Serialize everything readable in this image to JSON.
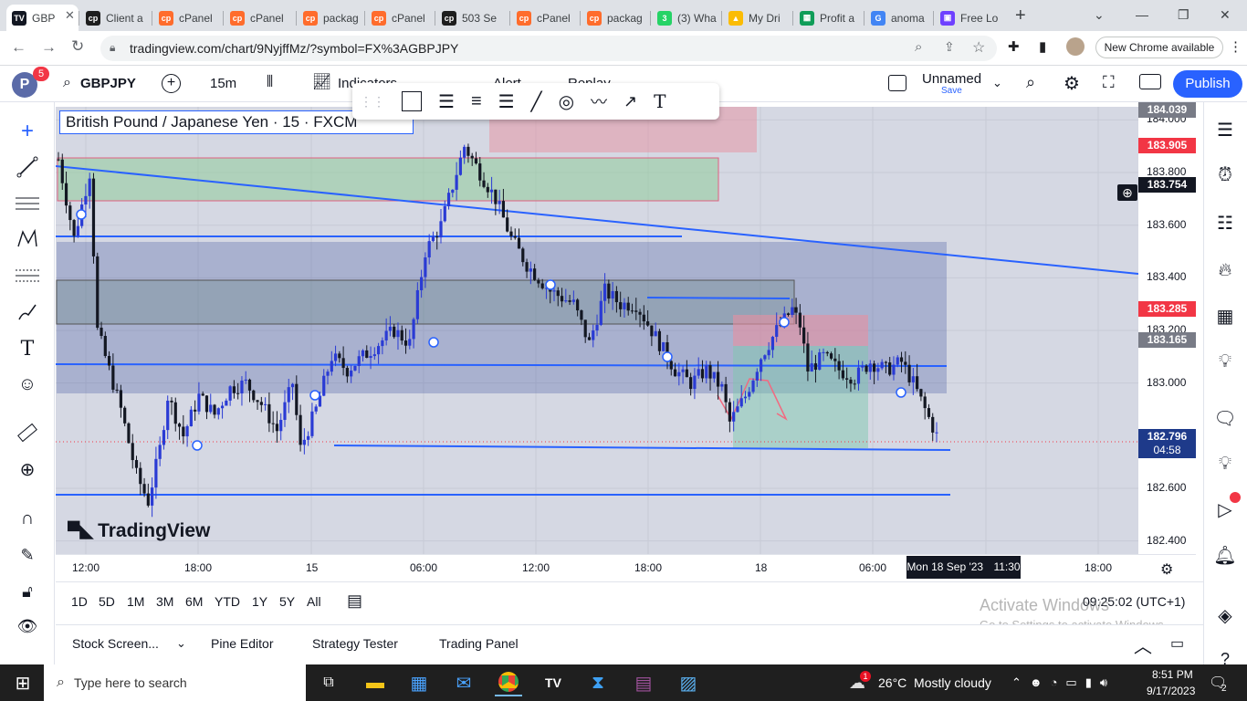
{
  "browser": {
    "tabs": [
      {
        "title": "GBP",
        "active": true,
        "fav": "TV",
        "color": "#131722"
      },
      {
        "title": "Client a",
        "fav": "cp",
        "color": "#1e1e1e"
      },
      {
        "title": "cPanel",
        "fav": "cp",
        "color": "#ff6c2c"
      },
      {
        "title": "cPanel",
        "fav": "cp",
        "color": "#ff6c2c"
      },
      {
        "title": "packag",
        "fav": "cp",
        "color": "#ff6c2c"
      },
      {
        "title": "cPanel",
        "fav": "cp",
        "color": "#ff6c2c"
      },
      {
        "title": "503 Se",
        "fav": "cp",
        "color": "#1e1e1e"
      },
      {
        "title": "cPanel",
        "fav": "cp",
        "color": "#ff6c2c"
      },
      {
        "title": "packag",
        "fav": "cp",
        "color": "#ff6c2c"
      },
      {
        "title": "(3) Wha",
        "fav": "3",
        "color": "#25d366"
      },
      {
        "title": "My Dri",
        "fav": "▲",
        "color": "#fbbc04"
      },
      {
        "title": "Profit a",
        "fav": "▦",
        "color": "#0f9d58"
      },
      {
        "title": "anoma",
        "fav": "G",
        "color": "#4285f4"
      },
      {
        "title": "Free Lo",
        "fav": "▣",
        "color": "#6e40ff"
      }
    ],
    "url": "tradingview.com/chart/9NyjffMz/?symbol=FX%3AGBPJPY",
    "chrome_notice": "New Chrome available"
  },
  "tv": {
    "notif_count": "5",
    "symbol": "GBPJPY",
    "interval": "15m",
    "indicators_label": "Indicators",
    "alert_label": "Alert",
    "replay_label": "Replay",
    "layout_name": "Unnamed",
    "save_label": "Save",
    "publish_label": "Publish",
    "legend": "British Pound / Japanese Yen · 15 · FXCM",
    "watermark": "TradingView"
  },
  "price_axis": {
    "ticks": [
      "184.000",
      "183.800",
      "183.600",
      "183.400",
      "183.200",
      "183.000",
      "182.600",
      "182.400"
    ],
    "labels": [
      {
        "text": "184.039",
        "bg": "#787b86"
      },
      {
        "text": "183.905",
        "bg": "#f23645"
      },
      {
        "text": "183.754",
        "bg": "#131722"
      },
      {
        "text": "183.285",
        "bg": "#f23645"
      },
      {
        "text": "183.165",
        "bg": "#787b86"
      }
    ],
    "current_price": "182.796",
    "countdown": "04:58"
  },
  "time_axis": {
    "ticks": [
      "12:00",
      "18:00",
      "15",
      "06:00",
      "12:00",
      "18:00",
      "18",
      "06:00",
      "18:00"
    ],
    "crosshair": "Mon 18 Sep '23",
    "crosshair_time": "11:30"
  },
  "ranges": [
    "1D",
    "5D",
    "1M",
    "3M",
    "6M",
    "YTD",
    "1Y",
    "5Y",
    "All"
  ],
  "clock": "09:25:02 (UTC+1)",
  "bottom_tabs": [
    "Stock Screen...",
    "Pine Editor",
    "Strategy Tester",
    "Trading Panel"
  ],
  "activate": {
    "line1": "Activate Windows",
    "line2": "Go to Settings to activate Windows."
  },
  "taskbar": {
    "search_placeholder": "Type here to search",
    "weather": "26°C  Mostly cloudy",
    "weather_badge": "1",
    "time": "8:51 PM",
    "date": "9/17/2023",
    "notif": "2"
  },
  "chart_data": {
    "type": "candlestick",
    "symbol": "GBPJPY",
    "interval": "15",
    "ylim": [
      182.35,
      184.05
    ],
    "x_ticks": [
      "12:00",
      "18:00",
      "15",
      "06:00",
      "12:00",
      "18:00",
      "18",
      "06:00",
      "18:00"
    ],
    "y_ticks": [
      184.0,
      183.8,
      183.6,
      183.4,
      183.2,
      183.0,
      182.6,
      182.4
    ],
    "current_price": 182.796,
    "path": [
      [
        0,
        183.85
      ],
      [
        4,
        183.55
      ],
      [
        8,
        183.8
      ],
      [
        10,
        183.2
      ],
      [
        12,
        183.1
      ],
      [
        16,
        182.9
      ],
      [
        20,
        182.65
      ],
      [
        23,
        182.55
      ],
      [
        26,
        182.75
      ],
      [
        28,
        182.95
      ],
      [
        32,
        182.8
      ],
      [
        36,
        182.95
      ],
      [
        40,
        182.88
      ],
      [
        44,
        182.98
      ],
      [
        48,
        183.0
      ],
      [
        52,
        182.92
      ],
      [
        56,
        182.82
      ],
      [
        60,
        183.0
      ],
      [
        62,
        182.75
      ],
      [
        66,
        182.9
      ],
      [
        70,
        183.1
      ],
      [
        74,
        183.05
      ],
      [
        78,
        183.1
      ],
      [
        82,
        183.15
      ],
      [
        86,
        183.2
      ],
      [
        90,
        183.15
      ],
      [
        94,
        183.5
      ],
      [
        98,
        183.6
      ],
      [
        102,
        183.8
      ],
      [
        104,
        183.9
      ],
      [
        108,
        183.8
      ],
      [
        112,
        183.7
      ],
      [
        116,
        183.55
      ],
      [
        120,
        183.45
      ],
      [
        126,
        183.35
      ],
      [
        132,
        183.3
      ],
      [
        136,
        183.15
      ],
      [
        140,
        183.35
      ],
      [
        144,
        183.3
      ],
      [
        148,
        183.3
      ],
      [
        150,
        183.25
      ],
      [
        154,
        183.15
      ],
      [
        158,
        183.05
      ],
      [
        162,
        183.0
      ],
      [
        166,
        183.05
      ],
      [
        170,
        182.98
      ],
      [
        172,
        182.85
      ],
      [
        176,
        182.95
      ],
      [
        180,
        183.1
      ],
      [
        184,
        183.2
      ],
      [
        188,
        183.28
      ],
      [
        190,
        183.22
      ],
      [
        192,
        183.05
      ],
      [
        196,
        183.1
      ],
      [
        200,
        183.05
      ],
      [
        204,
        183.02
      ],
      [
        208,
        183.08
      ],
      [
        212,
        183.05
      ],
      [
        216,
        183.08
      ],
      [
        219,
        183.0
      ],
      [
        222,
        182.9
      ],
      [
        225,
        182.8
      ]
    ]
  }
}
